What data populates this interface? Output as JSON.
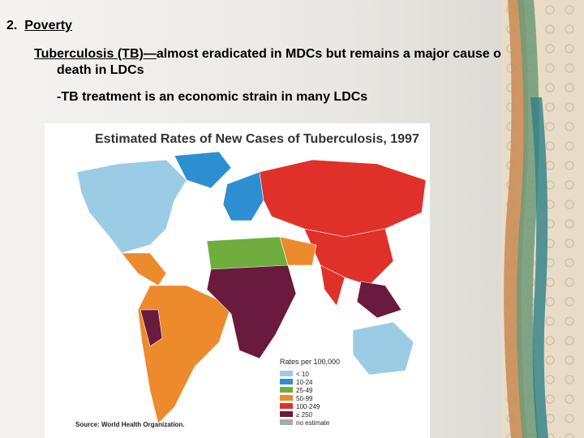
{
  "heading": {
    "number": "2.",
    "title": "Poverty"
  },
  "paragraphs": [
    {
      "underlined": "Tuberculosis (TB)—",
      "text": "almost eradicated in MDCs but remains a major cause of death in LDCs"
    },
    {
      "text": "-TB treatment is an economic strain in many LDCs"
    }
  ],
  "map": {
    "title": "Estimated Rates of New Cases of Tuberculosis, 1997",
    "legend_title": "Rates per 100,000",
    "legend": [
      {
        "label": "< 10",
        "color": "#9ccbe6"
      },
      {
        "label": "10-24",
        "color": "#2e8fd0"
      },
      {
        "label": "25-49",
        "color": "#6fae3e"
      },
      {
        "label": "50-99",
        "color": "#ec8a2c"
      },
      {
        "label": "100-249",
        "color": "#e0302a"
      },
      {
        "label": "≥ 250",
        "color": "#6a1a3c"
      },
      {
        "label": "no estimate",
        "color": "#a9a9a9"
      }
    ],
    "source": "Source: World Health Organization."
  }
}
